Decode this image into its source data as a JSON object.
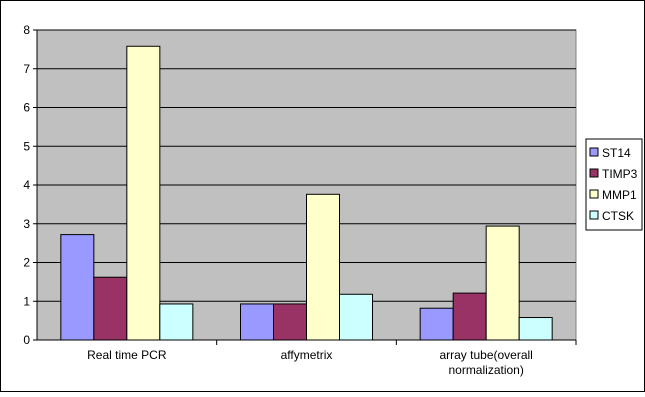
{
  "chart_data": {
    "type": "bar",
    "title": "",
    "xlabel": "",
    "ylabel": "",
    "ylim": [
      0,
      8
    ],
    "yticks": [
      "0",
      "1",
      "2",
      "3",
      "4",
      "5",
      "6",
      "7",
      "8"
    ],
    "grid": true,
    "legend_position": "right",
    "categories": [
      [
        "Real time PCR"
      ],
      [
        "affymetrix"
      ],
      [
        "array tube(overall",
        "normalization)"
      ]
    ],
    "series": [
      {
        "name": "ST14",
        "color": "#9999ff",
        "values": [
          2.72,
          0.93,
          0.82
        ]
      },
      {
        "name": "TIMP3",
        "color": "#993366",
        "values": [
          1.62,
          0.93,
          1.21
        ]
      },
      {
        "name": "MMP1",
        "color": "#ffffcc",
        "values": [
          7.58,
          3.76,
          2.94
        ]
      },
      {
        "name": "CTSK",
        "color": "#ccffff",
        "values": [
          0.93,
          1.18,
          0.58
        ]
      }
    ],
    "plot_background": "#c0c0c0"
  }
}
